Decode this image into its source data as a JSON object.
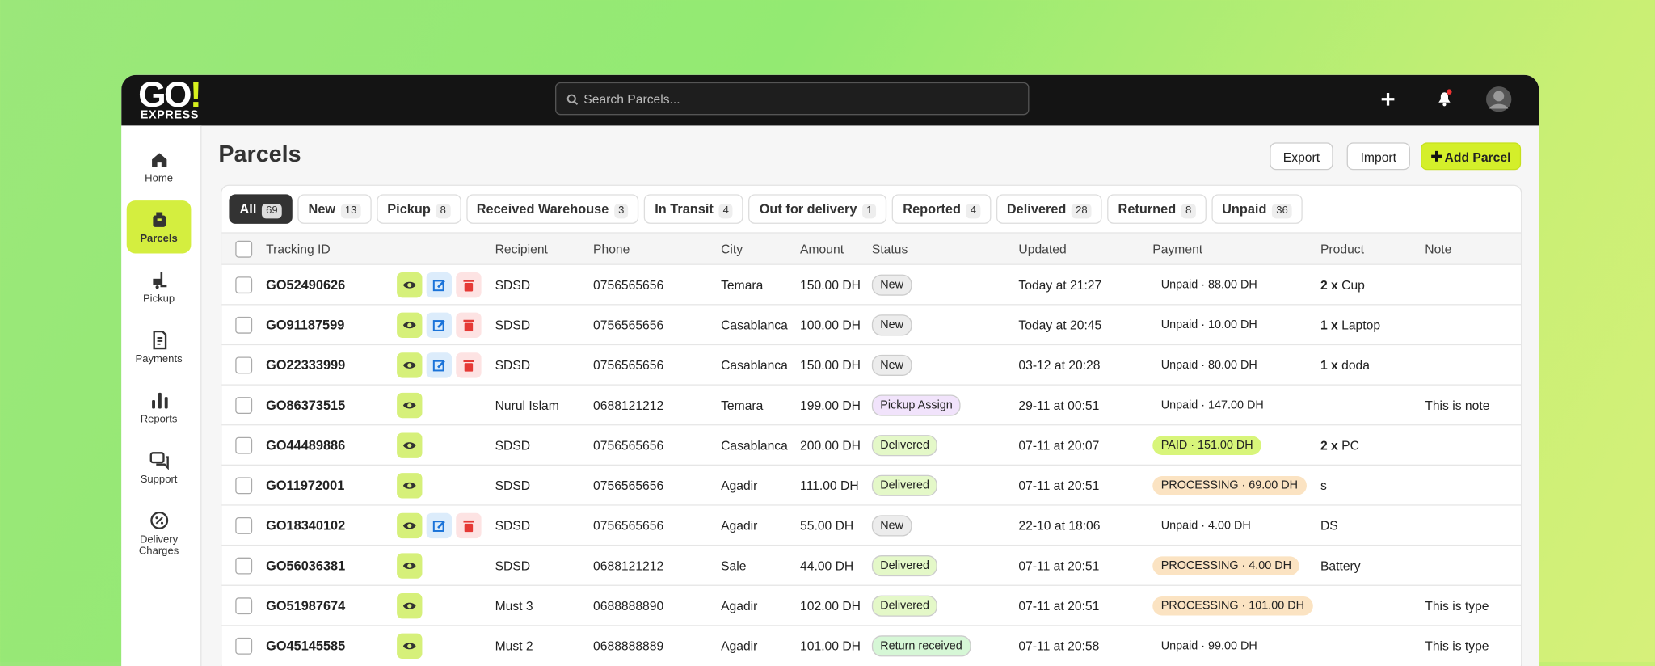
{
  "header": {
    "logo": {
      "main": "GO",
      "mark": "!",
      "sub": "EXPRESS"
    },
    "search_placeholder": "Search Parcels..."
  },
  "sidebar": [
    {
      "label": "Home",
      "active": false
    },
    {
      "label": "Parcels",
      "active": true
    },
    {
      "label": "Pickup",
      "active": false
    },
    {
      "label": "Payments",
      "active": false
    },
    {
      "label": "Reports",
      "active": false
    },
    {
      "label": "Support",
      "active": false
    },
    {
      "label": "Delivery Charges",
      "active": false
    }
  ],
  "page": {
    "title": "Parcels",
    "buttons": {
      "export": "Export",
      "import": "Import",
      "add": "Add Parcel"
    }
  },
  "tabs": [
    {
      "label": "All",
      "count": 69,
      "active": true
    },
    {
      "label": "New",
      "count": 13
    },
    {
      "label": "Pickup",
      "count": 8
    },
    {
      "label": "Received Warehouse",
      "count": 3
    },
    {
      "label": "In Transit",
      "count": 4
    },
    {
      "label": "Out for delivery",
      "count": 1
    },
    {
      "label": "Reported",
      "count": 4
    },
    {
      "label": "Delivered",
      "count": 28
    },
    {
      "label": "Returned",
      "count": 8
    },
    {
      "label": "Unpaid",
      "count": 36
    }
  ],
  "table": {
    "columns": [
      "Tracking ID",
      "Recipient",
      "Phone",
      "City",
      "Amount",
      "Status",
      "Updated",
      "Payment",
      "Product",
      "Note"
    ],
    "rows": [
      {
        "id": "GO52490626",
        "editable": true,
        "recipient": "SDSD",
        "phone": "0756565656",
        "city": "Temara",
        "amount": "150.00 DH",
        "status": {
          "label": "New",
          "color": "#ececec"
        },
        "updated": "Today at 21:27",
        "payment": {
          "label": "Unpaid · 88.00 DH",
          "color": "#ffffff"
        },
        "product": {
          "qty": "2 x",
          "name": "Cup"
        },
        "note": null
      },
      {
        "id": "GO91187599",
        "editable": true,
        "recipient": "SDSD",
        "phone": "0756565656",
        "city": "Casablanca",
        "amount": "100.00 DH",
        "status": {
          "label": "New",
          "color": "#ececec"
        },
        "updated": "Today at 20:45",
        "payment": {
          "label": "Unpaid · 10.00 DH",
          "color": "#ffffff"
        },
        "product": {
          "qty": "1 x",
          "name": "Laptop"
        },
        "note": null
      },
      {
        "id": "GO22333999",
        "editable": true,
        "recipient": "SDSD",
        "phone": "0756565656",
        "city": "Casablanca",
        "amount": "150.00 DH",
        "status": {
          "label": "New",
          "color": "#ececec"
        },
        "updated": "03-12 at 20:28",
        "payment": {
          "label": "Unpaid · 80.00 DH",
          "color": "#ffffff"
        },
        "product": {
          "qty": "1 x",
          "name": "doda"
        },
        "note": null
      },
      {
        "id": "GO86373515",
        "editable": false,
        "recipient": "Nurul Islam",
        "phone": "0688121212",
        "city": "Temara",
        "amount": "199.00 DH",
        "status": {
          "label": "Pickup Assign",
          "color": "#f1e3fb"
        },
        "updated": "29-11 at 00:51",
        "payment": {
          "label": "Unpaid · 147.00 DH",
          "color": "#ffffff"
        },
        "product": null,
        "note": "This is note"
      },
      {
        "id": "GO44489886",
        "editable": false,
        "recipient": "SDSD",
        "phone": "0756565656",
        "city": "Casablanca",
        "amount": "200.00 DH",
        "status": {
          "label": "Delivered",
          "color": "#e4f8c8"
        },
        "updated": "07-11 at 20:07",
        "payment": {
          "label": "PAID · 151.00 DH",
          "color": "#d8f57a"
        },
        "product": {
          "qty": "2 x",
          "name": "PC"
        },
        "note": null
      },
      {
        "id": "GO11972001",
        "editable": false,
        "recipient": "SDSD",
        "phone": "0756565656",
        "city": "Agadir",
        "amount": "111.00 DH",
        "status": {
          "label": "Delivered",
          "color": "#e4f8c8"
        },
        "updated": "07-11 at 20:51",
        "payment": {
          "label": "PROCESSING · 69.00 DH",
          "color": "#fbe3c2"
        },
        "product": {
          "qty": null,
          "name": "s"
        },
        "note": null
      },
      {
        "id": "GO18340102",
        "editable": true,
        "recipient": "SDSD",
        "phone": "0756565656",
        "city": "Agadir",
        "amount": "55.00 DH",
        "status": {
          "label": "New",
          "color": "#ececec"
        },
        "updated": "22-10 at 18:06",
        "payment": {
          "label": "Unpaid · 4.00 DH",
          "color": "#ffffff"
        },
        "product": {
          "qty": null,
          "name": "DS"
        },
        "note": null
      },
      {
        "id": "GO56036381",
        "editable": false,
        "recipient": "SDSD",
        "phone": "0688121212",
        "city": "Sale",
        "amount": "44.00 DH",
        "status": {
          "label": "Delivered",
          "color": "#e4f8c8"
        },
        "updated": "07-11 at 20:51",
        "payment": {
          "label": "PROCESSING · 4.00 DH",
          "color": "#fbe3c2"
        },
        "product": {
          "qty": null,
          "name": "Battery"
        },
        "note": null
      },
      {
        "id": "GO51987674",
        "editable": false,
        "recipient": "Must 3",
        "phone": "0688888890",
        "city": "Agadir",
        "amount": "102.00 DH",
        "status": {
          "label": "Delivered",
          "color": "#e4f8c8"
        },
        "updated": "07-11 at 20:51",
        "payment": {
          "label": "PROCESSING · 101.00 DH",
          "color": "#fbe3c2"
        },
        "product": null,
        "note": "This is type"
      },
      {
        "id": "GO45145585",
        "editable": false,
        "recipient": "Must 2",
        "phone": "0688888889",
        "city": "Agadir",
        "amount": "101.00 DH",
        "status": {
          "label": "Return received",
          "color": "#d6f7d6"
        },
        "updated": "07-11 at 20:58",
        "payment": {
          "label": "Unpaid · 99.00 DH",
          "color": "#ffffff"
        },
        "product": null,
        "note": "This is type"
      }
    ]
  }
}
